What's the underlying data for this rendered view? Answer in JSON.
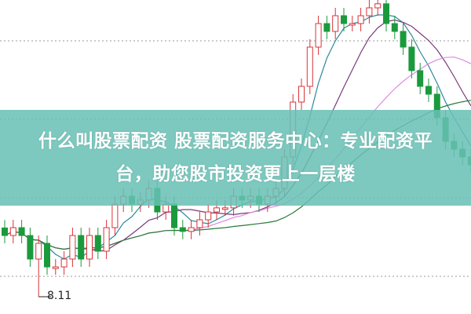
{
  "chart_data": {
    "type": "candlestick",
    "colors": {
      "up": "#d8343a",
      "down": "#1a9a3c",
      "grid": "#9a9a9a"
    },
    "open": [
      10.3,
      10.06,
      10.31,
      10.06,
      9.31,
      9.81,
      9.06,
      9.06,
      9.31,
      10.06,
      9.31,
      10.06,
      9.56,
      10.31,
      11.06,
      11.31,
      11.06,
      11.19,
      11.56,
      10.81,
      11.06,
      10.31,
      10.19,
      10.31,
      10.56,
      10.81,
      10.94,
      10.94,
      11.31,
      11.19,
      11.31,
      11.06,
      11.31,
      11.56,
      12.56,
      14.31,
      14.81,
      16.06,
      16.81,
      16.56,
      17.06,
      16.81,
      16.81,
      17.06,
      17.31,
      17.44,
      16.81,
      16.56,
      16.06,
      15.31,
      14.81,
      14.56,
      13.81,
      13.06,
      12.81,
      12.56
    ],
    "close": [
      10.06,
      10.31,
      10.06,
      9.31,
      9.81,
      9.06,
      9.06,
      9.31,
      10.06,
      9.31,
      10.06,
      9.56,
      10.31,
      11.06,
      11.31,
      11.06,
      11.19,
      11.56,
      10.81,
      11.06,
      10.31,
      10.19,
      10.31,
      10.56,
      10.81,
      10.94,
      10.94,
      11.31,
      11.19,
      11.31,
      11.06,
      11.31,
      11.56,
      12.56,
      14.31,
      14.81,
      16.06,
      16.81,
      16.56,
      17.06,
      16.81,
      16.81,
      17.06,
      17.31,
      17.44,
      16.81,
      16.56,
      16.06,
      15.31,
      14.81,
      14.56,
      13.81,
      13.06,
      12.81,
      12.56,
      12.31
    ],
    "low_annotation": {
      "index": 4,
      "value": 8.11,
      "label": "8.11"
    },
    "moving_averages": [
      {
        "period": 5,
        "color": "#2a8a9a"
      },
      {
        "period": 10,
        "color": "#7a3a7a"
      },
      {
        "period": 20,
        "color": "#e08ae0"
      },
      {
        "period": 30,
        "color": "#2a7a3a"
      }
    ],
    "grid": true
  },
  "banner": {
    "line1": "什么叫股票配资 股票配资服务中心：专业配资平",
    "line2": "台，助您股市投资更上一层楼"
  }
}
